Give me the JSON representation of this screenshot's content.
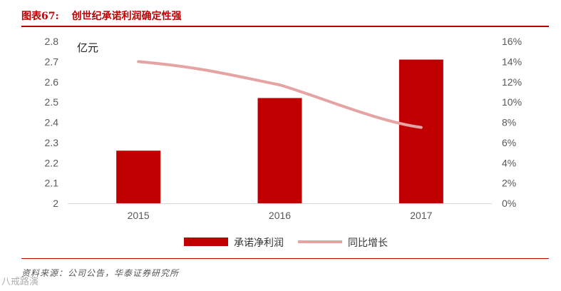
{
  "caption": {
    "label": "图表67:",
    "title": "创世纪承诺利润确定性强"
  },
  "source": "资料来源：公司公告，华泰证券研究所",
  "watermark": "八戒路演",
  "chart_data": {
    "type": "bar",
    "categories": [
      "2015",
      "2016",
      "2017"
    ],
    "series": [
      {
        "name": "承诺净利润",
        "type": "bar",
        "axis": "left",
        "color": "#c00000",
        "values": [
          2.26,
          2.52,
          2.71
        ]
      },
      {
        "name": "同比增长",
        "type": "line",
        "axis": "right",
        "color": "#e5a3a3",
        "values": [
          14.0,
          11.7,
          7.5
        ]
      }
    ],
    "y_left": {
      "label": "亿元",
      "ylim": [
        2.0,
        2.8
      ],
      "ticks": [
        "2",
        "2.1",
        "2.2",
        "2.3",
        "2.4",
        "2.5",
        "2.6",
        "2.7",
        "2.8"
      ]
    },
    "y_right": {
      "ylim": [
        0,
        16
      ],
      "ticks": [
        "0%",
        "2%",
        "4%",
        "6%",
        "8%",
        "10%",
        "12%",
        "14%",
        "16%"
      ]
    },
    "legend_position": "bottom",
    "grid": false
  }
}
